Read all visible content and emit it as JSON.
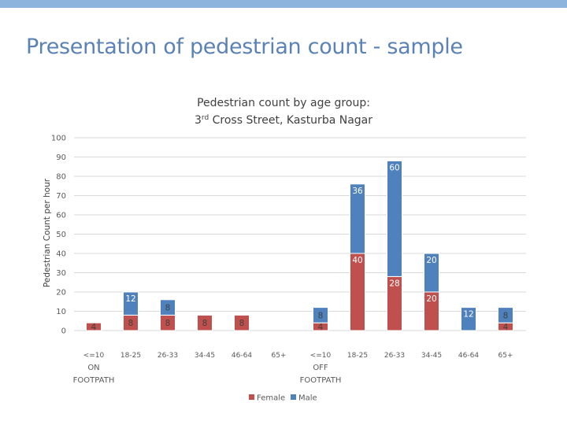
{
  "slide": {
    "title": "Presentation of pedestrian count - sample"
  },
  "chart_data": {
    "type": "bar",
    "stacked": true,
    "title_line1": "Pedestrian count by age group:",
    "title_line2_prefix": "3",
    "title_line2_sup": "rd",
    "title_line2_suffix": " Cross Street, Kasturba Nagar",
    "ylabel": "Pedestrian Count per hour",
    "ylim": [
      0,
      100
    ],
    "yticks": [
      "0",
      "10",
      "20",
      "30",
      "40",
      "50",
      "60",
      "70",
      "80",
      "90",
      "100"
    ],
    "groups": [
      {
        "name": "ON FOOTPATH",
        "name_line1": "ON",
        "name_line2": "FOOTPATH",
        "categories": [
          "<=10",
          "18-25",
          "26-33",
          "34-45",
          "46-64",
          "65+"
        ],
        "female": [
          4,
          8,
          8,
          8,
          8,
          0
        ],
        "male": [
          0,
          12,
          8,
          0,
          0,
          0
        ],
        "female_labels": [
          "4",
          "8",
          "8",
          "8",
          "8",
          ""
        ],
        "male_labels": [
          "",
          "12",
          "8",
          "",
          "",
          ""
        ]
      },
      {
        "name": "OFF FOOTPATH",
        "name_line1": "OFF",
        "name_line2": "FOOTPATH",
        "categories": [
          "<=10",
          "18-25",
          "26-33",
          "34-45",
          "46-64",
          "65+"
        ],
        "female": [
          4,
          40,
          28,
          20,
          0,
          4
        ],
        "male": [
          8,
          36,
          60,
          20,
          12,
          8
        ],
        "female_labels": [
          "4",
          "40",
          "28",
          "20",
          "",
          "4"
        ],
        "male_labels": [
          "8",
          "36",
          "60",
          "20",
          "12",
          "8"
        ]
      }
    ],
    "legend": [
      "Female",
      "Male"
    ],
    "legend_position": "bottom-center",
    "colors": {
      "female": "#c0504d",
      "male": "#4f81bd",
      "grid": "#d9d9d9",
      "text": "#595959",
      "bar_edge": "#ffffff"
    }
  }
}
